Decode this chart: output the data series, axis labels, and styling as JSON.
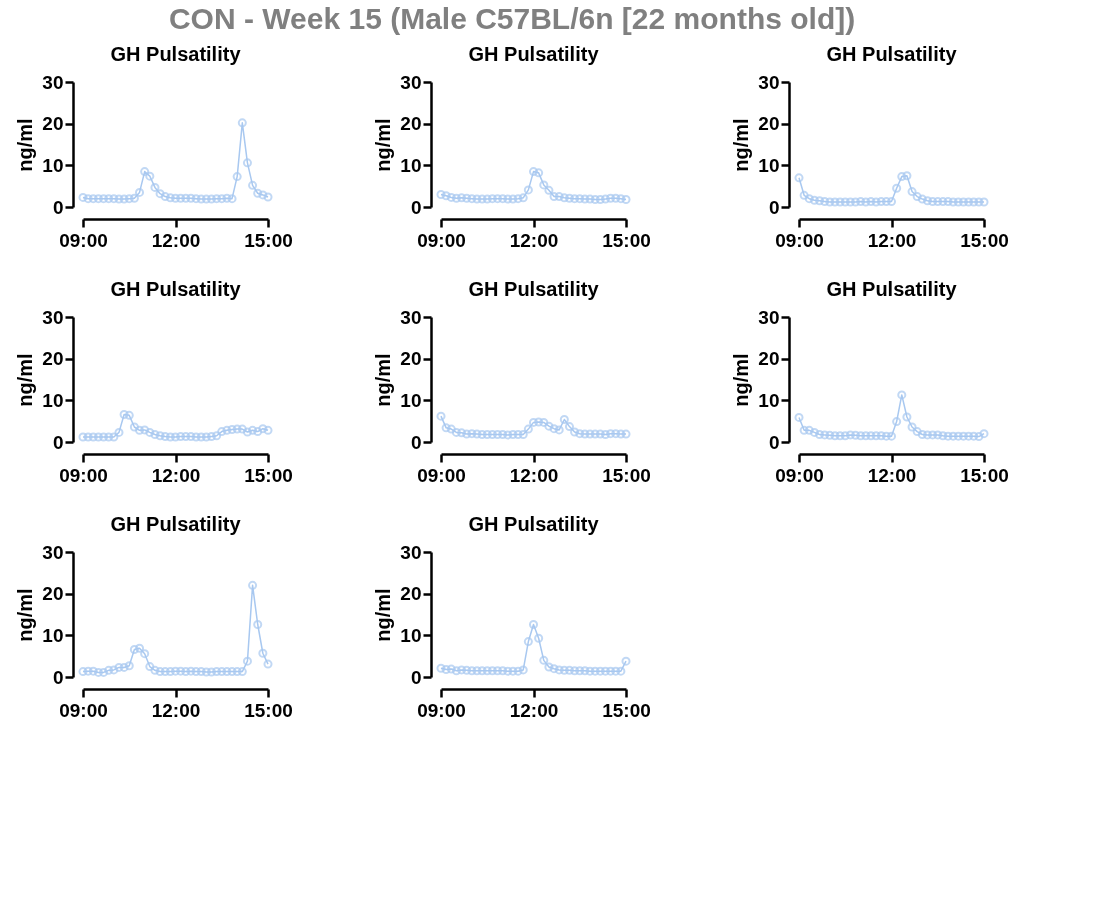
{
  "chart_data": [
    {
      "type": "line",
      "title": "GH Pulsatility",
      "ylabel": "ng/ml",
      "annotations": [
        "CON - Week 15 (Male C57BL/6n [22 months old])"
      ],
      "xlim": [
        9,
        15
      ],
      "xticks": [
        {
          "value": 9,
          "label": "09:00"
        },
        {
          "value": 12,
          "label": "12:00"
        },
        {
          "value": 15,
          "label": "15:00"
        }
      ],
      "ylim": [
        0,
        30
      ],
      "yticks": [
        0,
        10,
        20,
        30
      ],
      "grid": false,
      "marker": "circle",
      "line_style": "solid",
      "x": [
        9,
        9.1667,
        9.3333,
        9.5,
        9.6667,
        9.8333,
        10,
        10.1667,
        10.3333,
        10.5,
        10.6667,
        10.8333,
        11,
        11.1667,
        11.3333,
        11.5,
        11.6667,
        11.8333,
        12,
        12.1667,
        12.3333,
        12.5,
        12.6667,
        12.8333,
        13,
        13.1667,
        13.3333,
        13.5,
        13.6667,
        13.8333,
        14,
        14.1667,
        14.3333,
        14.5,
        14.6667,
        14.8333,
        15
      ],
      "series": [
        {
          "color": "#a8c8f0",
          "values": [
            2.3,
            2.0,
            2.0,
            2.0,
            2.0,
            2.0,
            2.0,
            1.9,
            1.9,
            2.0,
            2.1,
            3.5,
            8.5,
            7.4,
            4.7,
            3.2,
            2.5,
            2.2,
            2.1,
            2.1,
            2.1,
            2.1,
            2.0,
            1.9,
            1.9,
            1.9,
            2.0,
            2.0,
            2.1,
            2.0,
            7.3,
            20.2,
            10.6,
            5.2,
            3.3,
            2.9,
            2.4
          ]
        }
      ]
    },
    {
      "type": "line",
      "title": "GH Pulsatility",
      "ylabel": "ng/ml",
      "xlim": [
        9,
        15
      ],
      "xticks": [
        {
          "value": 9,
          "label": "09:00"
        },
        {
          "value": 12,
          "label": "12:00"
        },
        {
          "value": 15,
          "label": "15:00"
        }
      ],
      "ylim": [
        0,
        30
      ],
      "yticks": [
        0,
        10,
        20,
        30
      ],
      "grid": false,
      "marker": "circle",
      "line_style": "solid",
      "x": [
        9,
        9.1667,
        9.3333,
        9.5,
        9.6667,
        9.8333,
        10,
        10.1667,
        10.3333,
        10.5,
        10.6667,
        10.8333,
        11,
        11.1667,
        11.3333,
        11.5,
        11.6667,
        11.8333,
        12,
        12.1667,
        12.3333,
        12.5,
        12.6667,
        12.8333,
        13,
        13.1667,
        13.3333,
        13.5,
        13.6667,
        13.8333,
        14,
        14.1667,
        14.3333,
        14.5,
        14.6667,
        14.8333,
        15
      ],
      "series": [
        {
          "color": "#a8c8f0",
          "values": [
            3.0,
            2.7,
            2.3,
            2.1,
            2.2,
            2.1,
            2.0,
            1.9,
            1.9,
            1.9,
            2.0,
            2.0,
            2.0,
            1.9,
            1.9,
            2.0,
            2.2,
            4.1,
            8.5,
            8.2,
            5.3,
            4.0,
            2.5,
            2.5,
            2.2,
            2.1,
            2.0,
            2.0,
            1.9,
            1.9,
            1.8,
            1.8,
            1.9,
            2.1,
            2.1,
            2.0,
            1.8
          ]
        }
      ]
    },
    {
      "type": "line",
      "title": "GH Pulsatility",
      "ylabel": "ng/ml",
      "xlim": [
        9,
        15
      ],
      "xticks": [
        {
          "value": 9,
          "label": "09:00"
        },
        {
          "value": 12,
          "label": "12:00"
        },
        {
          "value": 15,
          "label": "15:00"
        }
      ],
      "ylim": [
        0,
        30
      ],
      "yticks": [
        0,
        10,
        20,
        30
      ],
      "grid": false,
      "marker": "circle",
      "line_style": "solid",
      "x": [
        9,
        9.1667,
        9.3333,
        9.5,
        9.6667,
        9.8333,
        10,
        10.1667,
        10.3333,
        10.5,
        10.6667,
        10.8333,
        11,
        11.1667,
        11.3333,
        11.5,
        11.6667,
        11.8333,
        12,
        12.1667,
        12.3333,
        12.5,
        12.6667,
        12.8333,
        13,
        13.1667,
        13.3333,
        13.5,
        13.6667,
        13.8333,
        14,
        14.1667,
        14.3333,
        14.5,
        14.6667,
        14.8333,
        15
      ],
      "series": [
        {
          "color": "#a8c8f0",
          "values": [
            7.0,
            2.8,
            2.0,
            1.6,
            1.5,
            1.3,
            1.2,
            1.2,
            1.2,
            1.2,
            1.2,
            1.2,
            1.3,
            1.2,
            1.3,
            1.2,
            1.3,
            1.3,
            1.3,
            4.5,
            7.3,
            7.5,
            3.7,
            2.5,
            1.9,
            1.5,
            1.3,
            1.3,
            1.3,
            1.3,
            1.2,
            1.2,
            1.2,
            1.2,
            1.2,
            1.2,
            1.2
          ]
        }
      ]
    },
    {
      "type": "line",
      "title": "GH Pulsatility",
      "ylabel": "ng/ml",
      "xlim": [
        9,
        15
      ],
      "xticks": [
        {
          "value": 9,
          "label": "09:00"
        },
        {
          "value": 12,
          "label": "12:00"
        },
        {
          "value": 15,
          "label": "15:00"
        }
      ],
      "ylim": [
        0,
        30
      ],
      "yticks": [
        0,
        10,
        20,
        30
      ],
      "grid": false,
      "marker": "circle",
      "line_style": "solid",
      "x": [
        9,
        9.1667,
        9.3333,
        9.5,
        9.6667,
        9.8333,
        10,
        10.1667,
        10.3333,
        10.5,
        10.6667,
        10.8333,
        11,
        11.1667,
        11.3333,
        11.5,
        11.6667,
        11.8333,
        12,
        12.1667,
        12.3333,
        12.5,
        12.6667,
        12.8333,
        13,
        13.1667,
        13.3333,
        13.5,
        13.6667,
        13.8333,
        14,
        14.1667,
        14.3333,
        14.5,
        14.6667,
        14.8333,
        15
      ],
      "series": [
        {
          "color": "#a8c8f0",
          "values": [
            1.2,
            1.2,
            1.2,
            1.2,
            1.2,
            1.2,
            1.2,
            2.3,
            6.6,
            6.4,
            3.6,
            2.8,
            2.9,
            2.3,
            1.8,
            1.5,
            1.3,
            1.2,
            1.2,
            1.3,
            1.3,
            1.3,
            1.2,
            1.2,
            1.2,
            1.3,
            1.5,
            2.5,
            2.8,
            3.0,
            3.1,
            3.1,
            2.4,
            2.8,
            2.5,
            3.2,
            2.8
          ]
        }
      ]
    },
    {
      "type": "line",
      "title": "GH Pulsatility",
      "ylabel": "ng/ml",
      "xlim": [
        9,
        15
      ],
      "xticks": [
        {
          "value": 9,
          "label": "09:00"
        },
        {
          "value": 12,
          "label": "12:00"
        },
        {
          "value": 15,
          "label": "15:00"
        }
      ],
      "ylim": [
        0,
        30
      ],
      "yticks": [
        0,
        10,
        20,
        30
      ],
      "grid": false,
      "marker": "circle",
      "line_style": "solid",
      "x": [
        9,
        9.1667,
        9.3333,
        9.5,
        9.6667,
        9.8333,
        10,
        10.1667,
        10.3333,
        10.5,
        10.6667,
        10.8333,
        11,
        11.1667,
        11.3333,
        11.5,
        11.6667,
        11.8333,
        12,
        12.1667,
        12.3333,
        12.5,
        12.6667,
        12.8333,
        13,
        13.1667,
        13.3333,
        13.5,
        13.6667,
        13.8333,
        14,
        14.1667,
        14.3333,
        14.5,
        14.6667,
        14.8333,
        15
      ],
      "series": [
        {
          "color": "#a8c8f0",
          "values": [
            6.2,
            3.4,
            3.1,
            2.3,
            2.2,
            1.9,
            2.0,
            1.9,
            1.8,
            1.8,
            1.8,
            1.8,
            1.8,
            1.7,
            1.8,
            1.8,
            1.8,
            3.1,
            4.7,
            4.8,
            4.7,
            3.8,
            3.2,
            2.9,
            5.4,
            3.7,
            2.4,
            2.0,
            1.9,
            1.9,
            1.9,
            1.9,
            1.8,
            2.0,
            2.0,
            1.9,
            1.9
          ]
        }
      ]
    },
    {
      "type": "line",
      "title": "GH Pulsatility",
      "ylabel": "ng/ml",
      "xlim": [
        9,
        15
      ],
      "xticks": [
        {
          "value": 9,
          "label": "09:00"
        },
        {
          "value": 12,
          "label": "12:00"
        },
        {
          "value": 15,
          "label": "15:00"
        }
      ],
      "ylim": [
        0,
        30
      ],
      "yticks": [
        0,
        10,
        20,
        30
      ],
      "grid": false,
      "marker": "circle",
      "line_style": "solid",
      "x": [
        9,
        9.1667,
        9.3333,
        9.5,
        9.6667,
        9.8333,
        10,
        10.1667,
        10.3333,
        10.5,
        10.6667,
        10.8333,
        11,
        11.1667,
        11.3333,
        11.5,
        11.6667,
        11.8333,
        12,
        12.1667,
        12.3333,
        12.5,
        12.6667,
        12.8333,
        13,
        13.1667,
        13.3333,
        13.5,
        13.6667,
        13.8333,
        14,
        14.1667,
        14.3333,
        14.5,
        14.6667,
        14.8333,
        15
      ],
      "series": [
        {
          "color": "#a8c8f0",
          "values": [
            5.9,
            2.8,
            2.8,
            2.3,
            1.8,
            1.7,
            1.6,
            1.5,
            1.5,
            1.5,
            1.7,
            1.6,
            1.5,
            1.5,
            1.5,
            1.5,
            1.5,
            1.4,
            1.4,
            4.9,
            11.3,
            6.0,
            3.6,
            2.5,
            1.8,
            1.7,
            1.7,
            1.7,
            1.5,
            1.4,
            1.4,
            1.4,
            1.4,
            1.4,
            1.4,
            1.3,
            2.0
          ]
        }
      ]
    },
    {
      "type": "line",
      "title": "GH Pulsatility",
      "ylabel": "ng/ml",
      "xlim": [
        9,
        15
      ],
      "xticks": [
        {
          "value": 9,
          "label": "09:00"
        },
        {
          "value": 12,
          "label": "12:00"
        },
        {
          "value": 15,
          "label": "15:00"
        }
      ],
      "ylim": [
        0,
        30
      ],
      "yticks": [
        0,
        10,
        20,
        30
      ],
      "grid": false,
      "marker": "circle",
      "line_style": "solid",
      "x": [
        9,
        9.1667,
        9.3333,
        9.5,
        9.6667,
        9.8333,
        10,
        10.1667,
        10.3333,
        10.5,
        10.6667,
        10.8333,
        11,
        11.1667,
        11.3333,
        11.5,
        11.6667,
        11.8333,
        12,
        12.1667,
        12.3333,
        12.5,
        12.6667,
        12.8333,
        13,
        13.1667,
        13.3333,
        13.5,
        13.6667,
        13.8333,
        14,
        14.1667,
        14.3333,
        14.5,
        14.6667,
        14.8333,
        15
      ],
      "series": [
        {
          "color": "#a8c8f0",
          "values": [
            1.3,
            1.4,
            1.4,
            1.1,
            1.1,
            1.6,
            1.7,
            2.3,
            2.3,
            2.7,
            6.6,
            6.9,
            5.6,
            2.5,
            1.6,
            1.3,
            1.3,
            1.3,
            1.4,
            1.4,
            1.3,
            1.4,
            1.3,
            1.3,
            1.2,
            1.2,
            1.3,
            1.3,
            1.3,
            1.3,
            1.3,
            1.3,
            3.8,
            22.0,
            12.6,
            5.7,
            3.1
          ]
        }
      ]
    },
    {
      "type": "line",
      "title": "GH Pulsatility",
      "ylabel": "ng/ml",
      "xlim": [
        9,
        15
      ],
      "xticks": [
        {
          "value": 9,
          "label": "09:00"
        },
        {
          "value": 12,
          "label": "12:00"
        },
        {
          "value": 15,
          "label": "15:00"
        }
      ],
      "ylim": [
        0,
        30
      ],
      "yticks": [
        0,
        10,
        20,
        30
      ],
      "grid": false,
      "marker": "circle",
      "line_style": "solid",
      "x": [
        9,
        9.1667,
        9.3333,
        9.5,
        9.6667,
        9.8333,
        10,
        10.1667,
        10.3333,
        10.5,
        10.6667,
        10.8333,
        11,
        11.1667,
        11.3333,
        11.5,
        11.6667,
        11.8333,
        12,
        12.1667,
        12.3333,
        12.5,
        12.6667,
        12.8333,
        13,
        13.1667,
        13.3333,
        13.5,
        13.6667,
        13.8333,
        14,
        14.1667,
        14.3333,
        14.5,
        14.6667,
        14.8333,
        15
      ],
      "series": [
        {
          "color": "#a8c8f0",
          "values": [
            2.1,
            1.8,
            1.9,
            1.5,
            1.7,
            1.6,
            1.5,
            1.5,
            1.5,
            1.5,
            1.5,
            1.5,
            1.5,
            1.4,
            1.4,
            1.4,
            1.7,
            8.5,
            12.6,
            9.3,
            4.0,
            2.4,
            2.0,
            1.7,
            1.6,
            1.6,
            1.5,
            1.5,
            1.5,
            1.4,
            1.4,
            1.4,
            1.4,
            1.4,
            1.4,
            1.4,
            3.8
          ]
        }
      ]
    }
  ]
}
